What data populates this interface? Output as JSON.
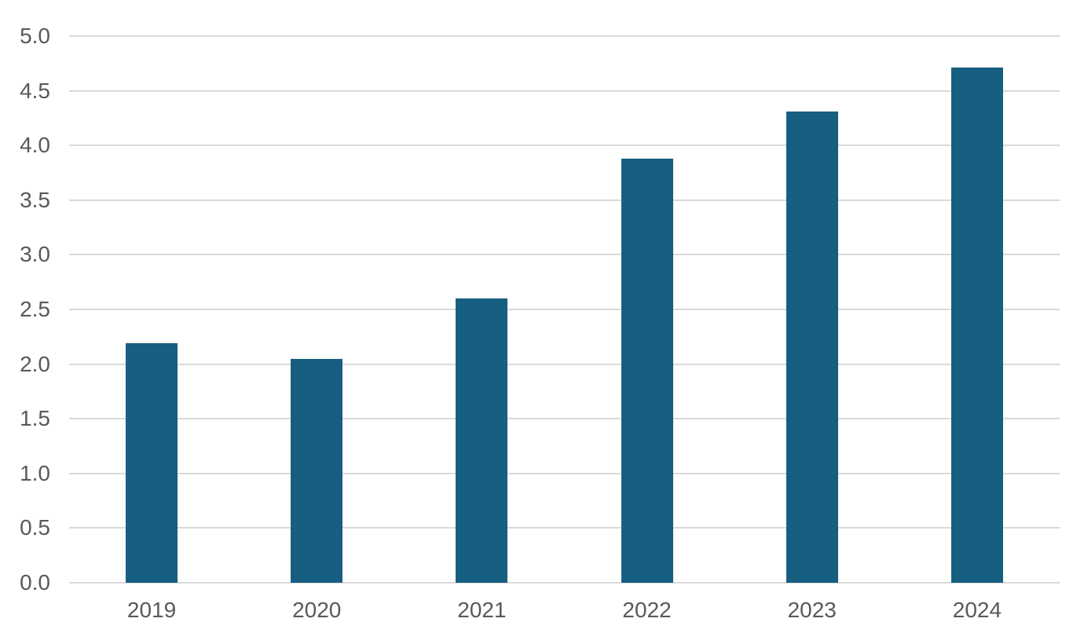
{
  "chart_data": {
    "type": "bar",
    "title": "",
    "xlabel": "",
    "ylabel": "",
    "categories": [
      "2019",
      "2020",
      "2021",
      "2022",
      "2023",
      "2024"
    ],
    "values": [
      2.19,
      2.05,
      2.6,
      3.88,
      4.31,
      4.71
    ],
    "ylim": [
      0,
      5
    ],
    "ytick_step": 0.5,
    "ytick_labels": [
      "0.0",
      "0.5",
      "1.0",
      "1.5",
      "2.0",
      "2.5",
      "3.0",
      "3.5",
      "4.0",
      "4.5",
      "5.0"
    ],
    "grid": "horizontal",
    "legend": "none",
    "colors": {
      "bar": "#165F80",
      "gridline": "#D9D9D9",
      "tick_label": "#595959",
      "background": "#FFFFFF"
    }
  }
}
